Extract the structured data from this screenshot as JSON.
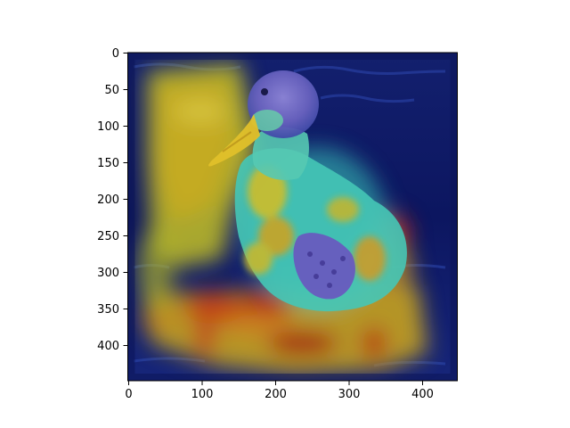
{
  "figure": {
    "description_type": "image-with-heatmap-overlay",
    "colormap": "jet",
    "subject": "duck",
    "colors": {
      "background": "#ffffff",
      "axis": "#000000",
      "water_dark": "#0a1560",
      "water_mid": "#1b2e8c",
      "heat_low": "#1a2aa8",
      "heat_mid": "#36d6c8",
      "heat_yellow": "#d8c21a",
      "heat_high": "#b5141a"
    }
  },
  "chart_data": {
    "type": "heatmap",
    "title": "",
    "xlabel": "",
    "ylabel": "",
    "xlim": [
      0,
      448
    ],
    "ylim": [
      448,
      0
    ],
    "x_ticks": [
      "0",
      "100",
      "200",
      "300",
      "400"
    ],
    "y_ticks": [
      "0",
      "50",
      "100",
      "150",
      "200",
      "250",
      "300",
      "350",
      "400"
    ],
    "grid": false
  }
}
